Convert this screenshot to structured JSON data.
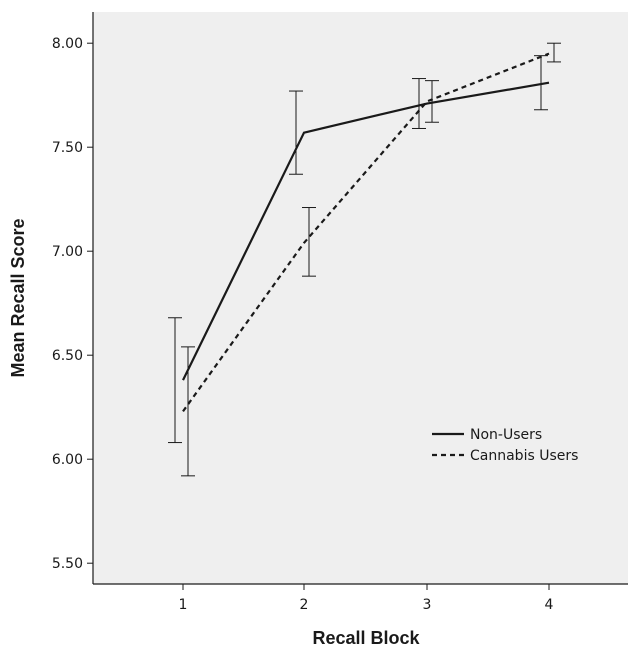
{
  "chart_data": {
    "type": "line",
    "title": "",
    "xlabel": "Recall Block",
    "ylabel": "Mean Recall Score",
    "categories": [
      "1",
      "2",
      "3",
      "4"
    ],
    "ylim": [
      5.4,
      8.15
    ],
    "yticks": [
      "5.50",
      "6.00",
      "6.50",
      "7.00",
      "7.50",
      "8.00"
    ],
    "grid": false,
    "legend_position": "bottom-right",
    "plot_background": "#efefef",
    "series": [
      {
        "name": "Non-Users",
        "line_style": "solid",
        "color": "#1a1a1a",
        "values": [
          6.38,
          7.57,
          7.71,
          7.81
        ],
        "error_low": [
          6.08,
          7.37,
          7.59,
          7.68
        ],
        "error_high": [
          6.68,
          7.77,
          7.83,
          7.94
        ]
      },
      {
        "name": "Cannabis Users",
        "line_style": "dashed",
        "color": "#1a1a1a",
        "values": [
          6.23,
          7.04,
          7.72,
          7.95
        ],
        "error_low": [
          5.92,
          6.88,
          7.62,
          7.91
        ],
        "error_high": [
          6.54,
          7.21,
          7.82,
          8.0
        ]
      }
    ]
  }
}
